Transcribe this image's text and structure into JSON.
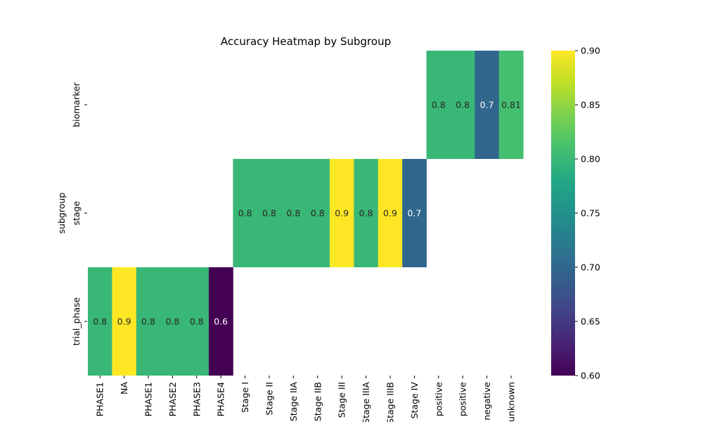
{
  "chart_data": {
    "type": "heatmap",
    "title": "Accuracy Heatmap by Subgroup",
    "ylabel": "subgroup",
    "xlabel": "",
    "rows": [
      "biomarker",
      "stage",
      "trial_phase"
    ],
    "columns": [
      "PHASE1",
      "NA",
      "PHASE1",
      "PHASE2",
      "PHASE3",
      "PHASE4",
      "Stage I",
      "Stage II",
      "Stage IIA",
      "Stage IIB",
      "Stage III",
      "Stage IIIA",
      "Stage IIIB",
      "Stage IV",
      "positive",
      "positive",
      "negative",
      "unknown"
    ],
    "cells": [
      {
        "row": 0,
        "col": 14,
        "value": 0.8,
        "label": "0.8"
      },
      {
        "row": 0,
        "col": 15,
        "value": 0.8,
        "label": "0.8"
      },
      {
        "row": 0,
        "col": 16,
        "value": 0.7,
        "label": "0.7"
      },
      {
        "row": 0,
        "col": 17,
        "value": 0.81,
        "label": "0.81"
      },
      {
        "row": 1,
        "col": 6,
        "value": 0.8,
        "label": "0.8"
      },
      {
        "row": 1,
        "col": 7,
        "value": 0.8,
        "label": "0.8"
      },
      {
        "row": 1,
        "col": 8,
        "value": 0.8,
        "label": "0.8"
      },
      {
        "row": 1,
        "col": 9,
        "value": 0.8,
        "label": "0.8"
      },
      {
        "row": 1,
        "col": 10,
        "value": 0.9,
        "label": "0.9"
      },
      {
        "row": 1,
        "col": 11,
        "value": 0.8,
        "label": "0.8"
      },
      {
        "row": 1,
        "col": 12,
        "value": 0.9,
        "label": "0.9"
      },
      {
        "row": 1,
        "col": 13,
        "value": 0.7,
        "label": "0.7"
      },
      {
        "row": 2,
        "col": 0,
        "value": 0.8,
        "label": "0.8"
      },
      {
        "row": 2,
        "col": 1,
        "value": 0.9,
        "label": "0.9"
      },
      {
        "row": 2,
        "col": 2,
        "value": 0.8,
        "label": "0.8"
      },
      {
        "row": 2,
        "col": 3,
        "value": 0.8,
        "label": "0.8"
      },
      {
        "row": 2,
        "col": 4,
        "value": 0.8,
        "label": "0.8"
      },
      {
        "row": 2,
        "col": 5,
        "value": 0.6,
        "label": "0.6"
      }
    ],
    "colorbar": {
      "colormap": "viridis",
      "vmin": 0.6,
      "vmax": 0.9,
      "ticks": [
        "0.60",
        "0.65",
        "0.70",
        "0.75",
        "0.80",
        "0.85",
        "0.90"
      ]
    },
    "grid": false
  }
}
